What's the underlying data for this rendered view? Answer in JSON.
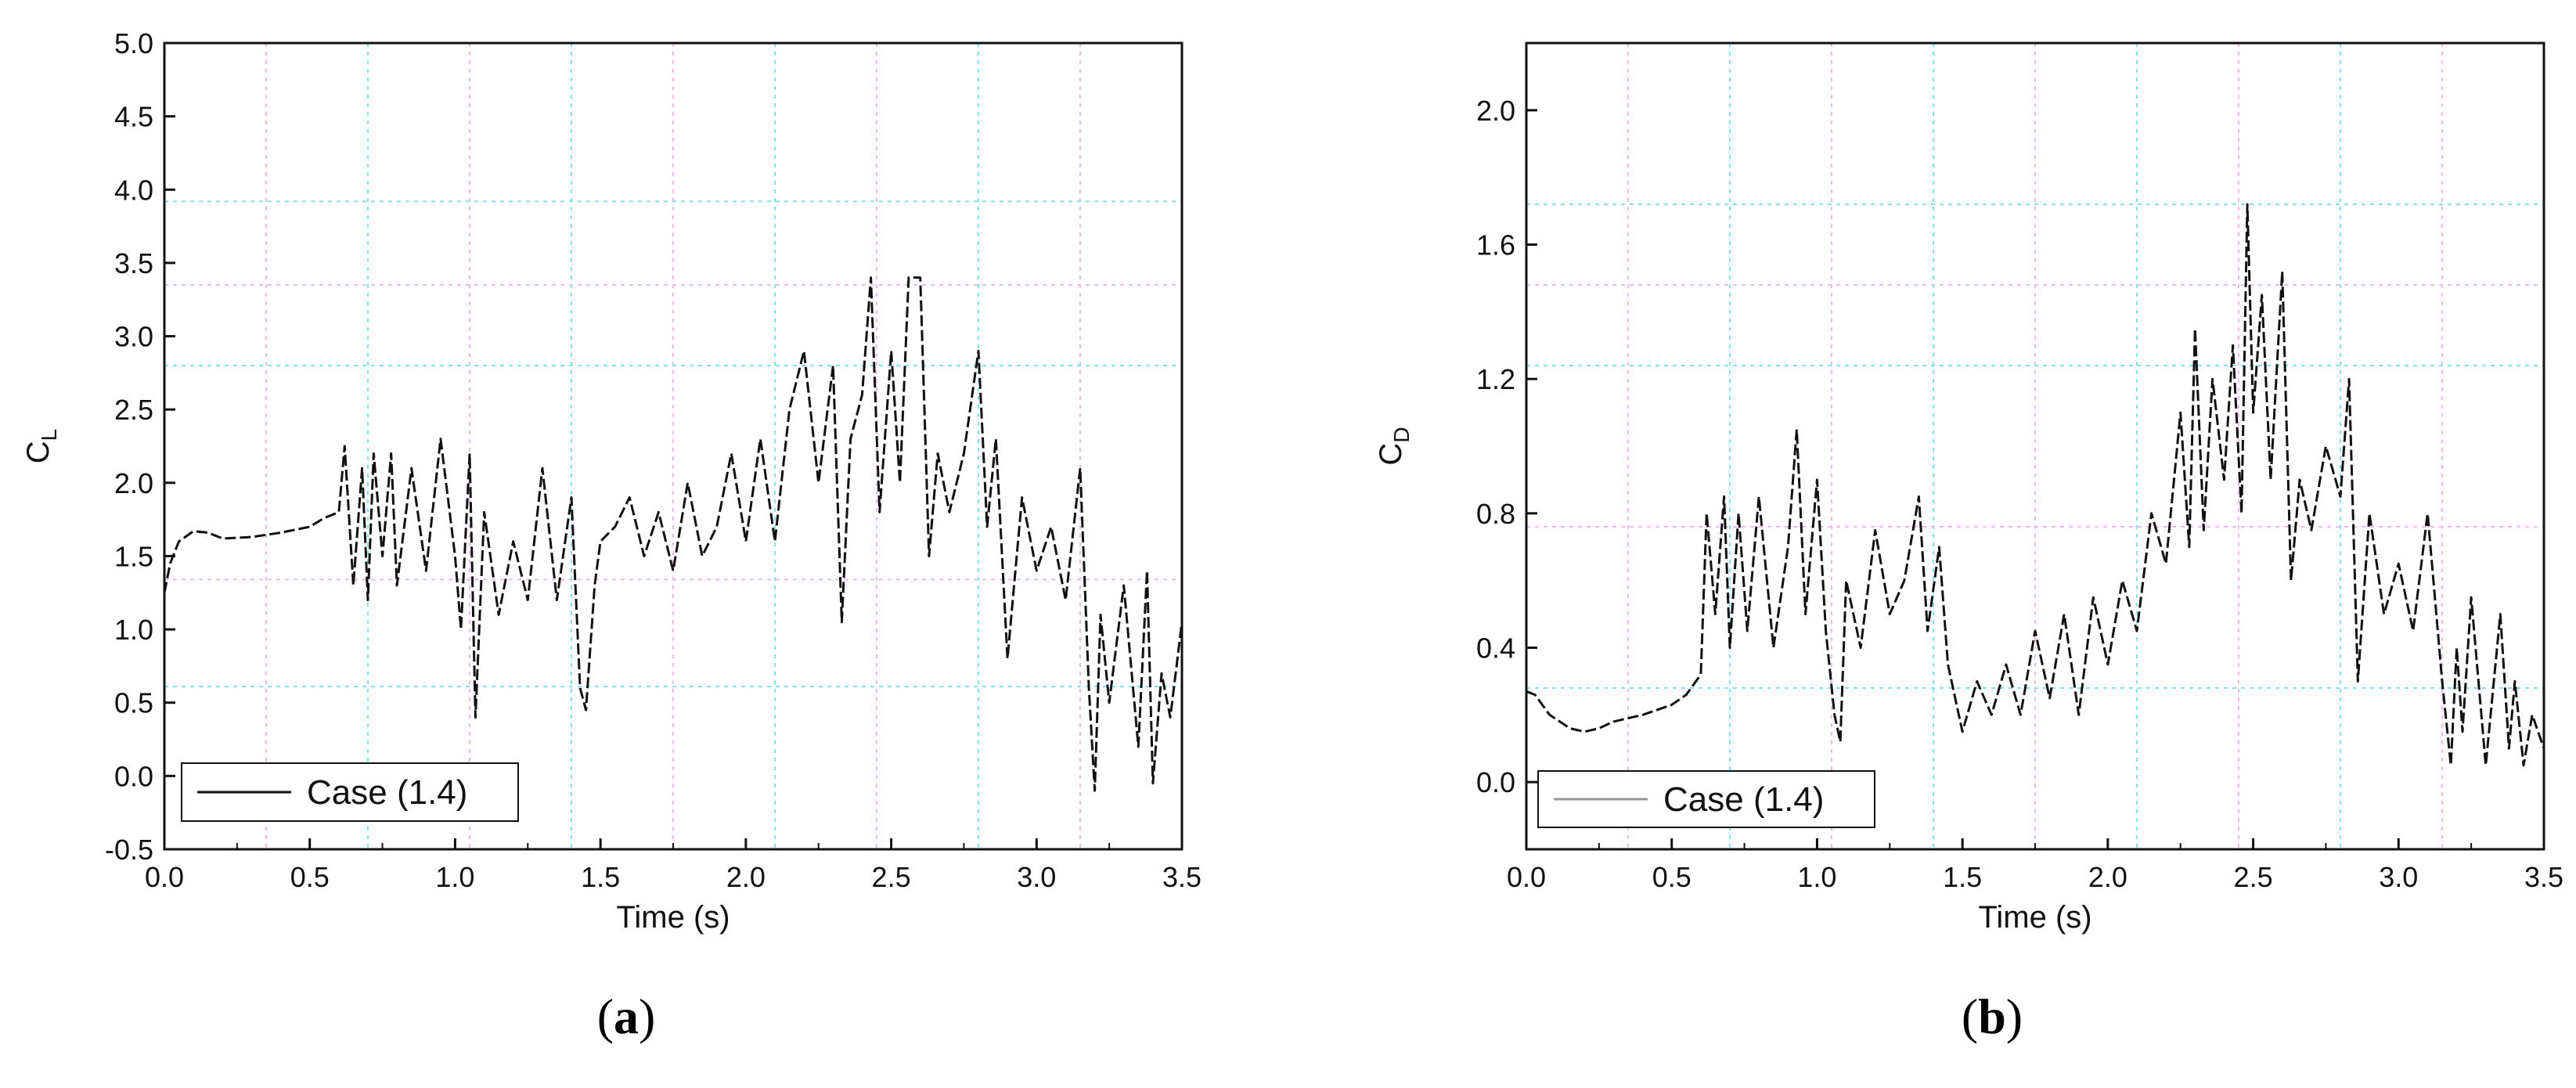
{
  "figure": {
    "panels": [
      {
        "label_open": "(",
        "label_letter": "a",
        "label_close": ")"
      },
      {
        "label_open": "(",
        "label_letter": "b",
        "label_close": ")"
      }
    ]
  },
  "chart_data": [
    {
      "type": "line",
      "panel": "a",
      "xlabel": "Time (s)",
      "ylabel_main": "C",
      "ylabel_sub": "L",
      "xlim": [
        0.0,
        3.5
      ],
      "ylim": [
        -0.5,
        5.0
      ],
      "xticks": [
        "0.0",
        "0.5",
        "1.0",
        "1.5",
        "2.0",
        "2.5",
        "3.0",
        "3.5"
      ],
      "yticks": [
        "-0.5",
        "0.0",
        "0.5",
        "1.0",
        "1.5",
        "2.0",
        "2.5",
        "3.0",
        "3.5",
        "4.0",
        "4.5",
        "5.0"
      ],
      "grid": true,
      "legend": {
        "position": "bottom-left"
      },
      "series": [
        {
          "name": "Case (1.4)",
          "color": "#111111",
          "x": [
            0.0,
            0.02,
            0.05,
            0.1,
            0.15,
            0.2,
            0.3,
            0.4,
            0.5,
            0.55,
            0.6,
            0.62,
            0.65,
            0.68,
            0.7,
            0.72,
            0.75,
            0.78,
            0.8,
            0.85,
            0.9,
            0.95,
            1.0,
            1.02,
            1.05,
            1.07,
            1.1,
            1.15,
            1.2,
            1.25,
            1.3,
            1.35,
            1.4,
            1.43,
            1.45,
            1.48,
            1.5,
            1.55,
            1.6,
            1.65,
            1.7,
            1.75,
            1.8,
            1.85,
            1.9,
            1.95,
            2.0,
            2.05,
            2.1,
            2.15,
            2.2,
            2.25,
            2.3,
            2.33,
            2.36,
            2.4,
            2.43,
            2.46,
            2.5,
            2.53,
            2.56,
            2.6,
            2.63,
            2.66,
            2.7,
            2.75,
            2.8,
            2.83,
            2.86,
            2.9,
            2.95,
            3.0,
            3.05,
            3.1,
            3.15,
            3.18,
            3.2,
            3.22,
            3.25,
            3.3,
            3.35,
            3.38,
            3.4,
            3.43,
            3.46,
            3.5
          ],
          "y": [
            1.25,
            1.45,
            1.6,
            1.67,
            1.66,
            1.62,
            1.63,
            1.66,
            1.7,
            1.76,
            1.8,
            2.25,
            1.3,
            2.1,
            1.2,
            2.2,
            1.5,
            2.2,
            1.3,
            2.1,
            1.4,
            2.3,
            1.5,
            1.0,
            2.2,
            0.4,
            1.8,
            1.1,
            1.6,
            1.2,
            2.1,
            1.2,
            1.9,
            0.6,
            0.45,
            1.3,
            1.6,
            1.7,
            1.9,
            1.5,
            1.8,
            1.4,
            2.0,
            1.5,
            1.7,
            2.2,
            1.6,
            2.3,
            1.6,
            2.5,
            2.9,
            2.0,
            2.8,
            1.05,
            2.3,
            2.6,
            3.4,
            1.8,
            2.9,
            2.0,
            3.4,
            3.4,
            1.5,
            2.2,
            1.8,
            2.2,
            2.9,
            1.7,
            2.3,
            0.8,
            1.9,
            1.4,
            1.7,
            1.2,
            2.1,
            0.6,
            -0.1,
            1.1,
            0.5,
            1.3,
            0.2,
            1.4,
            -0.05,
            0.7,
            0.4,
            1.05
          ]
        }
      ]
    },
    {
      "type": "line",
      "panel": "b",
      "xlabel": "Time (s)",
      "ylabel_main": "C",
      "ylabel_sub": "D",
      "xlim": [
        0.0,
        3.5
      ],
      "ylim": [
        -0.2,
        2.2
      ],
      "xticks": [
        "0.0",
        "0.5",
        "1.0",
        "1.5",
        "2.0",
        "2.5",
        "3.0",
        "3.5"
      ],
      "yticks": [
        "0.0",
        "0.4",
        "0.8",
        "1.2",
        "1.6",
        "2.0"
      ],
      "grid": true,
      "legend": {
        "position": "bottom-left"
      },
      "series": [
        {
          "name": "Case (1.4)",
          "color": "#111111",
          "x": [
            0.0,
            0.03,
            0.08,
            0.15,
            0.2,
            0.25,
            0.3,
            0.4,
            0.5,
            0.55,
            0.6,
            0.62,
            0.65,
            0.68,
            0.7,
            0.73,
            0.76,
            0.8,
            0.85,
            0.9,
            0.93,
            0.96,
            1.0,
            1.03,
            1.06,
            1.08,
            1.1,
            1.15,
            1.2,
            1.25,
            1.3,
            1.35,
            1.38,
            1.42,
            1.45,
            1.5,
            1.55,
            1.6,
            1.65,
            1.7,
            1.75,
            1.8,
            1.85,
            1.9,
            1.95,
            2.0,
            2.05,
            2.1,
            2.15,
            2.2,
            2.25,
            2.28,
            2.3,
            2.33,
            2.36,
            2.4,
            2.43,
            2.46,
            2.48,
            2.5,
            2.53,
            2.56,
            2.6,
            2.63,
            2.66,
            2.7,
            2.75,
            2.8,
            2.83,
            2.86,
            2.9,
            2.95,
            3.0,
            3.05,
            3.1,
            3.15,
            3.18,
            3.2,
            3.22,
            3.25,
            3.3,
            3.35,
            3.38,
            3.4,
            3.43,
            3.46,
            3.5
          ],
          "y": [
            0.27,
            0.26,
            0.2,
            0.16,
            0.15,
            0.16,
            0.18,
            0.2,
            0.23,
            0.26,
            0.32,
            0.8,
            0.5,
            0.85,
            0.4,
            0.8,
            0.45,
            0.85,
            0.4,
            0.7,
            1.05,
            0.5,
            0.9,
            0.45,
            0.2,
            0.12,
            0.6,
            0.4,
            0.75,
            0.5,
            0.6,
            0.85,
            0.45,
            0.7,
            0.35,
            0.15,
            0.3,
            0.2,
            0.35,
            0.2,
            0.45,
            0.25,
            0.5,
            0.2,
            0.55,
            0.35,
            0.6,
            0.45,
            0.8,
            0.65,
            1.1,
            0.7,
            1.35,
            0.75,
            1.2,
            0.9,
            1.3,
            0.8,
            1.72,
            1.1,
            1.45,
            0.9,
            1.52,
            0.6,
            0.9,
            0.75,
            1.0,
            0.85,
            1.2,
            0.3,
            0.8,
            0.5,
            0.65,
            0.45,
            0.8,
            0.3,
            0.05,
            0.4,
            0.15,
            0.55,
            0.05,
            0.5,
            0.1,
            0.3,
            0.05,
            0.2,
            0.1
          ]
        }
      ]
    }
  ]
}
